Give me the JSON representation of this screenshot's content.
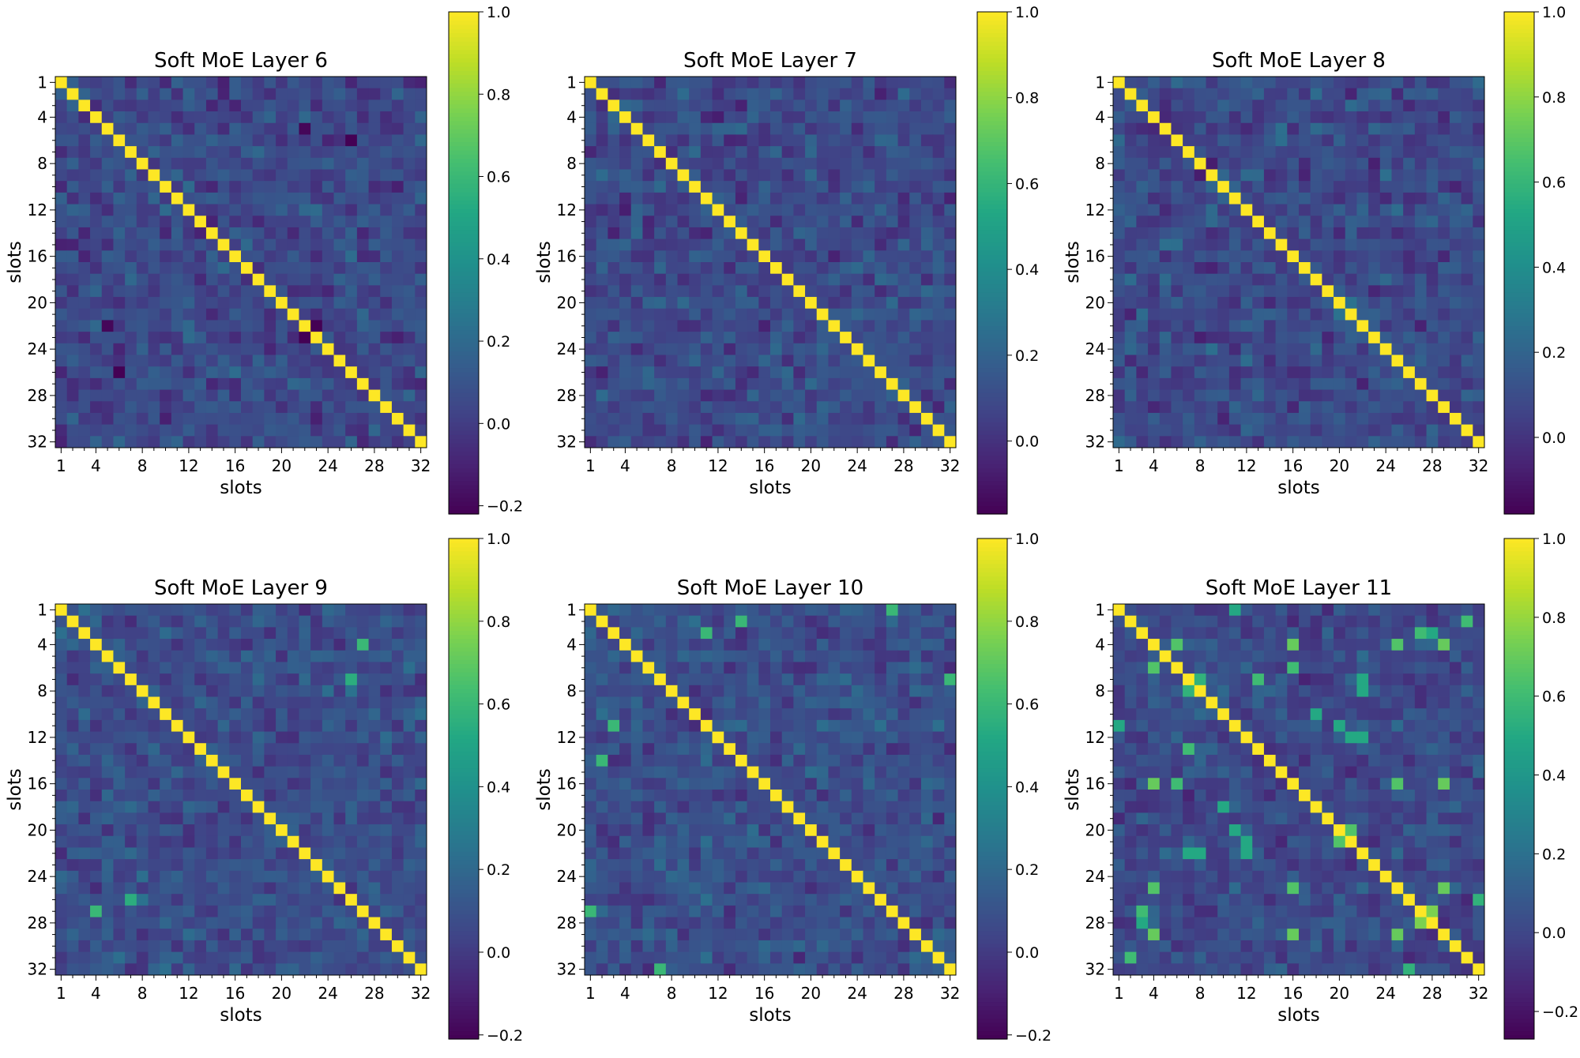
{
  "chart_data": [
    {
      "type": "heatmap",
      "title": "Soft MoE Layer 6",
      "xlabel": "slots",
      "ylabel": "slots",
      "size": 32,
      "diagonal": 1.0,
      "colormap": "viridis",
      "x_tick_labels": [
        "1",
        "4",
        "8",
        "12",
        "16",
        "20",
        "24",
        "28",
        "32"
      ],
      "y_tick_labels": [
        "1",
        "4",
        "8",
        "12",
        "16",
        "20",
        "24",
        "28",
        "32"
      ],
      "clim": [
        -0.22,
        1.0
      ],
      "colorbar_ticks": [
        -0.2,
        0.0,
        0.2,
        0.4,
        0.6,
        0.8,
        1.0
      ],
      "colorbar_tick_labels": [
        "−0.2",
        "0.0",
        "0.2",
        "0.4",
        "0.6",
        "0.8",
        "1.0"
      ],
      "highlighted_cells": [
        [
          22,
          23,
          -0.22
        ],
        [
          5,
          22,
          -0.2
        ],
        [
          6,
          26,
          -0.22
        ]
      ]
    },
    {
      "type": "heatmap",
      "title": "Soft MoE Layer 7",
      "xlabel": "slots",
      "ylabel": "slots",
      "size": 32,
      "diagonal": 1.0,
      "colormap": "viridis",
      "x_tick_labels": [
        "1",
        "4",
        "8",
        "12",
        "16",
        "20",
        "24",
        "28",
        "32"
      ],
      "y_tick_labels": [
        "1",
        "4",
        "8",
        "12",
        "16",
        "20",
        "24",
        "28",
        "32"
      ],
      "clim": [
        -0.17,
        1.0
      ],
      "colorbar_ticks": [
        0.0,
        0.2,
        0.4,
        0.6,
        0.8,
        1.0
      ],
      "colorbar_tick_labels": [
        "0.0",
        "0.2",
        "0.4",
        "0.6",
        "0.8",
        "1.0"
      ],
      "highlighted_cells": []
    },
    {
      "type": "heatmap",
      "title": "Soft MoE Layer 8",
      "xlabel": "slots",
      "ylabel": "slots",
      "size": 32,
      "diagonal": 1.0,
      "colormap": "viridis",
      "x_tick_labels": [
        "1",
        "4",
        "8",
        "12",
        "16",
        "20",
        "24",
        "28",
        "32"
      ],
      "y_tick_labels": [
        "1",
        "4",
        "8",
        "12",
        "16",
        "20",
        "24",
        "28",
        "32"
      ],
      "clim": [
        -0.18,
        1.0
      ],
      "colorbar_ticks": [
        0.0,
        0.2,
        0.4,
        0.6,
        0.8,
        1.0
      ],
      "colorbar_tick_labels": [
        "0.0",
        "0.2",
        "0.4",
        "0.6",
        "0.8",
        "1.0"
      ],
      "highlighted_cells": []
    },
    {
      "type": "heatmap",
      "title": "Soft MoE Layer 9",
      "xlabel": "slots",
      "ylabel": "slots",
      "size": 32,
      "diagonal": 1.0,
      "colormap": "viridis",
      "x_tick_labels": [
        "1",
        "4",
        "8",
        "12",
        "16",
        "20",
        "24",
        "28",
        "32"
      ],
      "y_tick_labels": [
        "1",
        "4",
        "8",
        "12",
        "16",
        "20",
        "24",
        "28",
        "32"
      ],
      "clim": [
        -0.21,
        1.0
      ],
      "colorbar_ticks": [
        -0.2,
        0.0,
        0.2,
        0.4,
        0.6,
        0.8,
        1.0
      ],
      "colorbar_tick_labels": [
        "−0.2",
        "0.0",
        "0.2",
        "0.4",
        "0.6",
        "0.8",
        "1.0"
      ],
      "highlighted_cells": [
        [
          4,
          27,
          0.6
        ],
        [
          7,
          26,
          0.55
        ]
      ]
    },
    {
      "type": "heatmap",
      "title": "Soft MoE Layer 10",
      "xlabel": "slots",
      "ylabel": "slots",
      "size": 32,
      "diagonal": 1.0,
      "colormap": "viridis",
      "x_tick_labels": [
        "1",
        "4",
        "8",
        "12",
        "16",
        "20",
        "24",
        "28",
        "32"
      ],
      "y_tick_labels": [
        "1",
        "4",
        "8",
        "12",
        "16",
        "20",
        "24",
        "28",
        "32"
      ],
      "clim": [
        -0.21,
        1.0
      ],
      "colorbar_ticks": [
        -0.2,
        0.0,
        0.2,
        0.4,
        0.6,
        0.8,
        1.0
      ],
      "colorbar_tick_labels": [
        "−0.2",
        "0.0",
        "0.2",
        "0.4",
        "0.6",
        "0.8",
        "1.0"
      ],
      "highlighted_cells": [
        [
          1,
          27,
          0.65
        ],
        [
          3,
          11,
          0.6
        ],
        [
          14,
          2,
          0.6
        ],
        [
          7,
          32,
          0.6
        ],
        [
          27,
          1,
          0.6
        ]
      ]
    },
    {
      "type": "heatmap",
      "title": "Soft MoE Layer 11",
      "xlabel": "slots",
      "ylabel": "slots",
      "size": 32,
      "diagonal": 1.0,
      "colormap": "viridis",
      "x_tick_labels": [
        "1",
        "4",
        "8",
        "12",
        "16",
        "20",
        "24",
        "28",
        "32"
      ],
      "y_tick_labels": [
        "1",
        "4",
        "8",
        "12",
        "16",
        "20",
        "24",
        "28",
        "32"
      ],
      "clim": [
        -0.27,
        1.0
      ],
      "colorbar_ticks": [
        -0.2,
        0.0,
        0.2,
        0.4,
        0.6,
        0.8,
        1.0
      ],
      "colorbar_tick_labels": [
        "−0.2",
        "0.0",
        "0.2",
        "0.4",
        "0.6",
        "0.8",
        "1.0"
      ],
      "highlighted_cells": [
        [
          4,
          6,
          0.65
        ],
        [
          4,
          16,
          0.7
        ],
        [
          4,
          25,
          0.65
        ],
        [
          4,
          29,
          0.7
        ],
        [
          6,
          16,
          0.6
        ],
        [
          16,
          25,
          0.65
        ],
        [
          16,
          29,
          0.7
        ],
        [
          25,
          29,
          0.7
        ],
        [
          7,
          8,
          0.55
        ],
        [
          7,
          13,
          0.6
        ],
        [
          20,
          21,
          0.65
        ],
        [
          27,
          28,
          0.75
        ],
        [
          3,
          27,
          0.6
        ],
        [
          3,
          28,
          0.5
        ],
        [
          2,
          31,
          0.6
        ],
        [
          1,
          11,
          0.5
        ],
        [
          11,
          20,
          0.5
        ],
        [
          12,
          21,
          0.5
        ],
        [
          12,
          22,
          0.5
        ],
        [
          22,
          8,
          0.5
        ],
        [
          22,
          7,
          0.5
        ],
        [
          26,
          32,
          0.55
        ],
        [
          10,
          18,
          0.5
        ]
      ]
    }
  ]
}
